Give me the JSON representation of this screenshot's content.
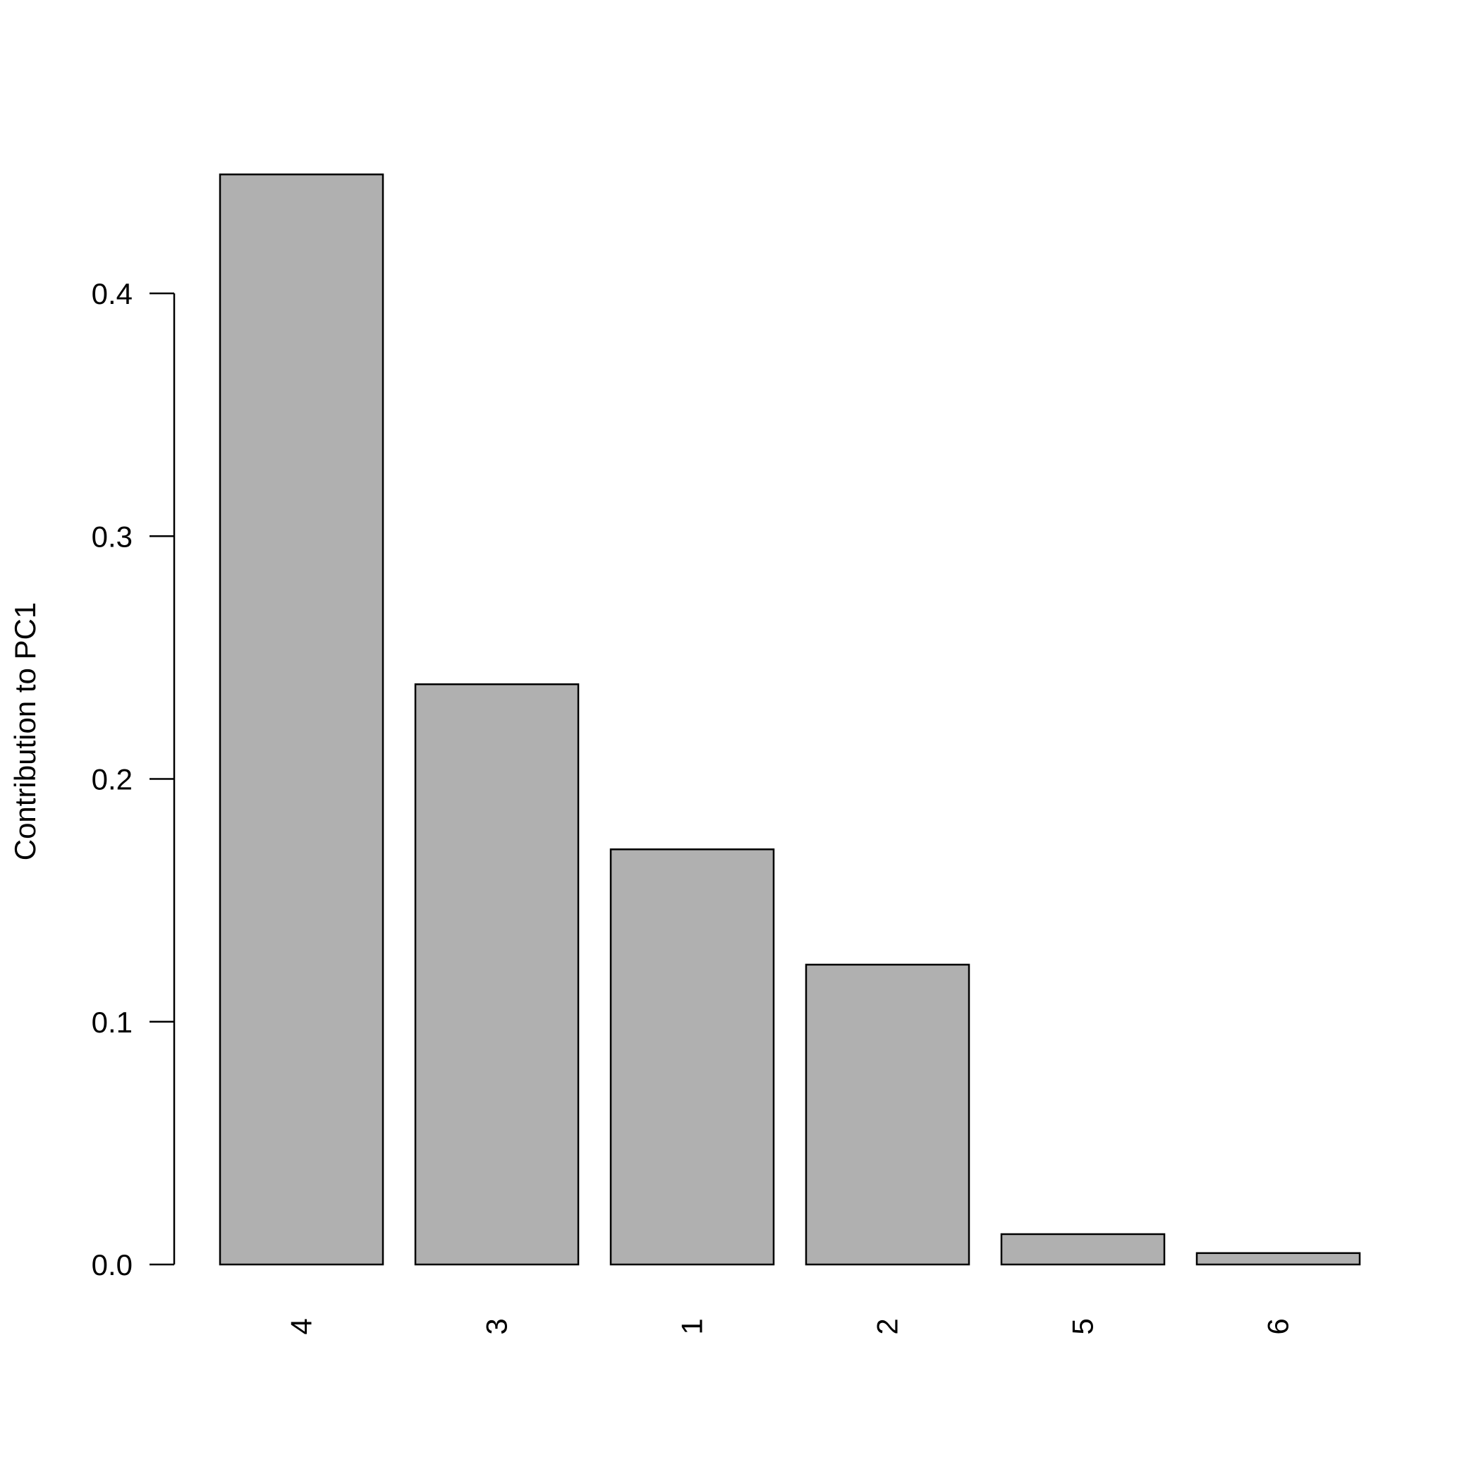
{
  "chart_data": {
    "type": "bar",
    "title": "",
    "xlabel": "",
    "ylabel": "Contribution to PC1",
    "categories": [
      "4",
      "3",
      "1",
      "2",
      "5",
      "6"
    ],
    "values": [
      0.449,
      0.239,
      0.171,
      0.1235,
      0.0125,
      0.0047
    ],
    "ylim": [
      0,
      0.45
    ],
    "yticks": [
      0.0,
      0.1,
      0.2,
      0.3,
      0.4
    ],
    "ytick_labels": [
      "0.0",
      "0.1",
      "0.2",
      "0.3",
      "0.4"
    ],
    "x_label_orientation": "vertical",
    "grid": false,
    "bar_color": "#b0b0b0",
    "bar_edge_color": "#000000"
  }
}
